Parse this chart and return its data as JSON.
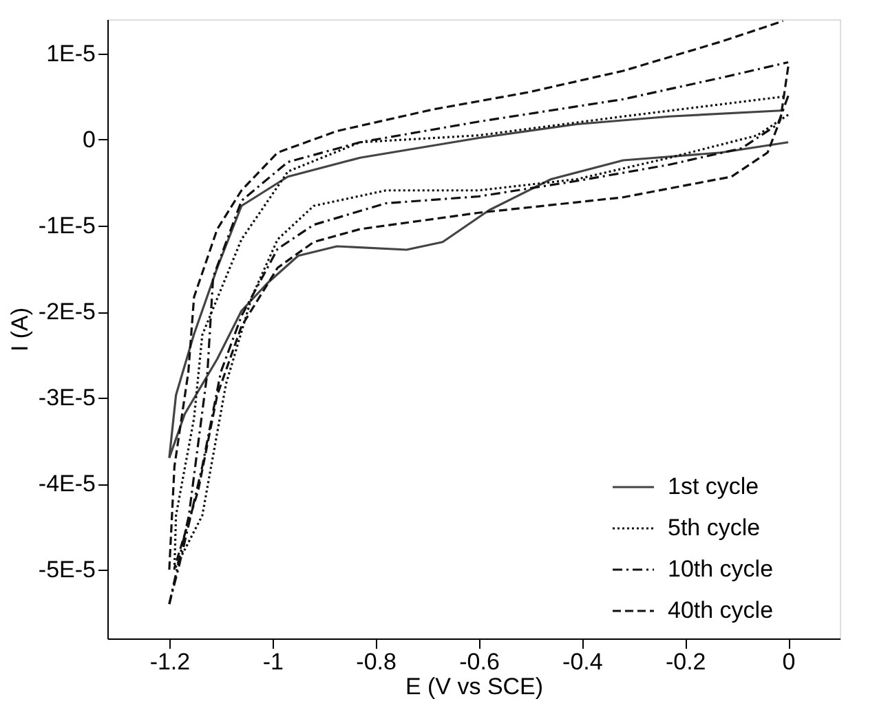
{
  "chart_data": {
    "type": "line",
    "xlabel": "E (V vs SCE)",
    "ylabel": "I (A)",
    "xlim": [
      -1.32,
      0.1
    ],
    "ylim": [
      -5.8e-05,
      1.4e-05
    ],
    "xticks": [
      -1.2,
      -1,
      -0.8,
      -0.6,
      -0.4,
      -0.2,
      0
    ],
    "yticks": [
      {
        "value": 1e-05,
        "label": "1E-5"
      },
      0,
      {
        "value": -1e-05,
        "label": "-1E-5"
      },
      {
        "value": -2e-05,
        "label": "-2E-5"
      },
      {
        "value": -3e-05,
        "label": "-3E-5"
      },
      {
        "value": -4e-05,
        "label": "-4E-5"
      },
      {
        "value": -5e-05,
        "label": "-5E-5"
      }
    ],
    "grid": false,
    "legend": "bottom right",
    "marker": "none",
    "series": [
      {
        "name": "1st cycle",
        "color": "#444444",
        "line_style": "solid",
        "x": [
          -1.2,
          -1.187,
          -1.152,
          -1.107,
          -1.06,
          -0.97,
          -0.83,
          -0.6,
          -0.41,
          -0.23,
          -0.008
        ],
        "values": [
          -3.7e-05,
          -2.97e-05,
          -2.26e-05,
          -1.49e-05,
          -7.7e-06,
          -4.3e-06,
          -2.1e-06,
          2e-07,
          1.8e-06,
          2.7e-06,
          3.4e-06
        ]
      },
      {
        "color": "#444444",
        "line_style": "solid",
        "x": [
          0,
          -0.13,
          -0.32,
          -0.46,
          -0.58,
          -0.67,
          -0.74,
          -0.875,
          -0.95,
          -1.01,
          -1.06,
          -1.107,
          -1.17,
          -1.2
        ],
        "values": [
          -3e-07,
          -1.5e-06,
          -2.4e-06,
          -4.6e-06,
          -8.2e-06,
          -1.19e-05,
          -1.28e-05,
          -1.24e-05,
          -1.35e-05,
          -1.67e-05,
          -1.99e-05,
          -2.55e-05,
          -3.19e-05,
          -3.7e-05
        ]
      },
      {
        "name": "5th cycle",
        "color": "#111111",
        "line_style": "dotted",
        "x": [
          -1.19,
          -1.187,
          -1.152,
          -1.136,
          -1.06,
          -0.97,
          -0.83,
          -0.6,
          -0.32,
          -0.01
        ],
        "values": [
          -5e-05,
          -4.37e-05,
          -3.24e-05,
          -2.27e-05,
          -1.16e-05,
          -3.7e-06,
          -3e-07,
          5e-07,
          2.7e-06,
          5e-06
        ]
      },
      {
        "color": "#111111",
        "line_style": "dotted",
        "x": [
          0,
          -0.06,
          -0.23,
          -0.41,
          -0.6,
          -0.78,
          -0.92,
          -0.99,
          -1.04,
          -1.09,
          -1.136,
          -1.19
        ],
        "values": [
          2.9e-06,
          5e-07,
          -2.1e-06,
          -4.6e-06,
          -5.9e-06,
          -5.9e-06,
          -7.7e-06,
          -1.16e-05,
          -1.83e-05,
          -2.84e-05,
          -4.37e-05,
          -5e-05
        ]
      },
      {
        "name": "10th cycle",
        "color": "#111111",
        "line_style": "dashdot",
        "x": [
          -1.2,
          -1.162,
          -1.126,
          -1.115,
          -1.06,
          -0.97,
          -0.83,
          -0.6,
          -0.32,
          -0.13,
          0
        ],
        "values": [
          -5.4e-05,
          -4.37e-05,
          -2.7e-05,
          -1.6e-05,
          -7.1e-06,
          -2.6e-06,
          -3e-07,
          2.1e-06,
          4.7e-06,
          7.2e-06,
          9e-06
        ]
      },
      {
        "color": "#111111",
        "line_style": "dashdot",
        "x": [
          0,
          -0.02,
          -0.09,
          -0.23,
          -0.41,
          -0.6,
          -0.78,
          -0.92,
          -0.99,
          -1.06,
          -1.1,
          -1.136,
          -1.18,
          -1.2
        ],
        "values": [
          5.1e-06,
          1.8e-06,
          -1e-06,
          -2.9e-06,
          -4.8e-06,
          -6.6e-06,
          -7.4e-06,
          -9.9e-06,
          -1.27e-05,
          -2.05e-05,
          -2.7e-05,
          -3.8e-05,
          -4.93e-05,
          -5.4e-05
        ]
      },
      {
        "name": "40th cycle",
        "color": "#111111",
        "line_style": "dashed",
        "x": [
          -1.2,
          -1.19,
          -1.163,
          -1.152,
          -1.107,
          -1.06,
          -0.99,
          -0.875,
          -0.69,
          -0.505,
          -0.32,
          -0.13,
          -0.01
        ],
        "values": [
          -5e-05,
          -3.8e-05,
          -2.7e-05,
          -1.83e-05,
          -1.04e-05,
          -5.9e-06,
          -1.5e-06,
          1e-06,
          3.5e-06,
          5.5e-06,
          8e-06,
          1.14e-05,
          1.38e-05
        ]
      },
      {
        "color": "#111111",
        "line_style": "dashed",
        "x": [
          0,
          -0.015,
          -0.04,
          -0.11,
          -0.32,
          -0.6,
          -0.83,
          -0.92,
          -0.99,
          -1.06,
          -1.107,
          -1.144,
          -1.19
        ],
        "values": [
          8.5e-06,
          2.4e-06,
          -1.5e-06,
          -4.3e-06,
          -6.7e-06,
          -8.5e-06,
          -1.04e-05,
          -1.19e-05,
          -1.49e-05,
          -2.17e-05,
          -2.97e-05,
          -4.08e-05,
          -4.98e-05
        ]
      }
    ]
  }
}
